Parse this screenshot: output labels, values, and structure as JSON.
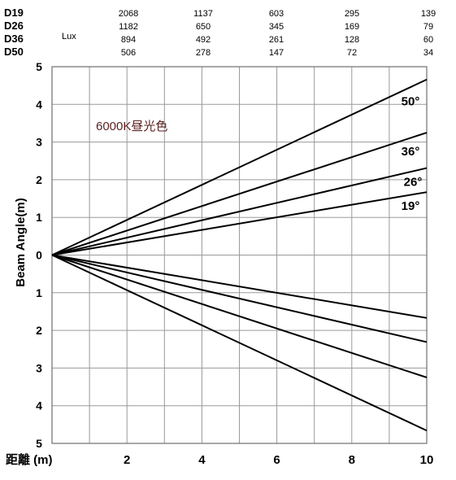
{
  "lux_table": {
    "unit_label": "Lux",
    "rows": [
      {
        "label": "D19",
        "values": [
          "2068",
          "1137",
          "603",
          "295",
          "139"
        ]
      },
      {
        "label": "D26",
        "values": [
          "1182",
          "650",
          "345",
          "169",
          "79"
        ]
      },
      {
        "label": "D36",
        "values": [
          "894",
          "492",
          "261",
          "128",
          "60"
        ]
      },
      {
        "label": "D50",
        "values": [
          "506",
          "278",
          "147",
          "72",
          "34"
        ]
      }
    ]
  },
  "chart_data": {
    "type": "line",
    "color_temperature_label": "6000K昼光色",
    "xlabel": "距離 (m)",
    "ylabel": "Beam Angle(m)",
    "xlim": [
      0,
      10
    ],
    "ylim": [
      -5,
      5
    ],
    "x_ticks": [
      "2",
      "4",
      "6",
      "8",
      "10"
    ],
    "y_ticks_upper": [
      "5",
      "4",
      "3",
      "2",
      "1",
      "0"
    ],
    "y_ticks_lower": [
      "1",
      "2",
      "3",
      "4",
      "5"
    ],
    "grid": true,
    "series": [
      {
        "name": "50°",
        "x": [
          0,
          10
        ],
        "upper": [
          0,
          4.66
        ],
        "lower": [
          0,
          -4.66
        ]
      },
      {
        "name": "36°",
        "x": [
          0,
          10
        ],
        "upper": [
          0,
          3.25
        ],
        "lower": [
          0,
          -3.25
        ]
      },
      {
        "name": "26°",
        "x": [
          0,
          10
        ],
        "upper": [
          0,
          2.31
        ],
        "lower": [
          0,
          -2.31
        ]
      },
      {
        "name": "19°",
        "x": [
          0,
          10
        ],
        "upper": [
          0,
          1.67
        ],
        "lower": [
          0,
          -1.67
        ]
      }
    ]
  }
}
